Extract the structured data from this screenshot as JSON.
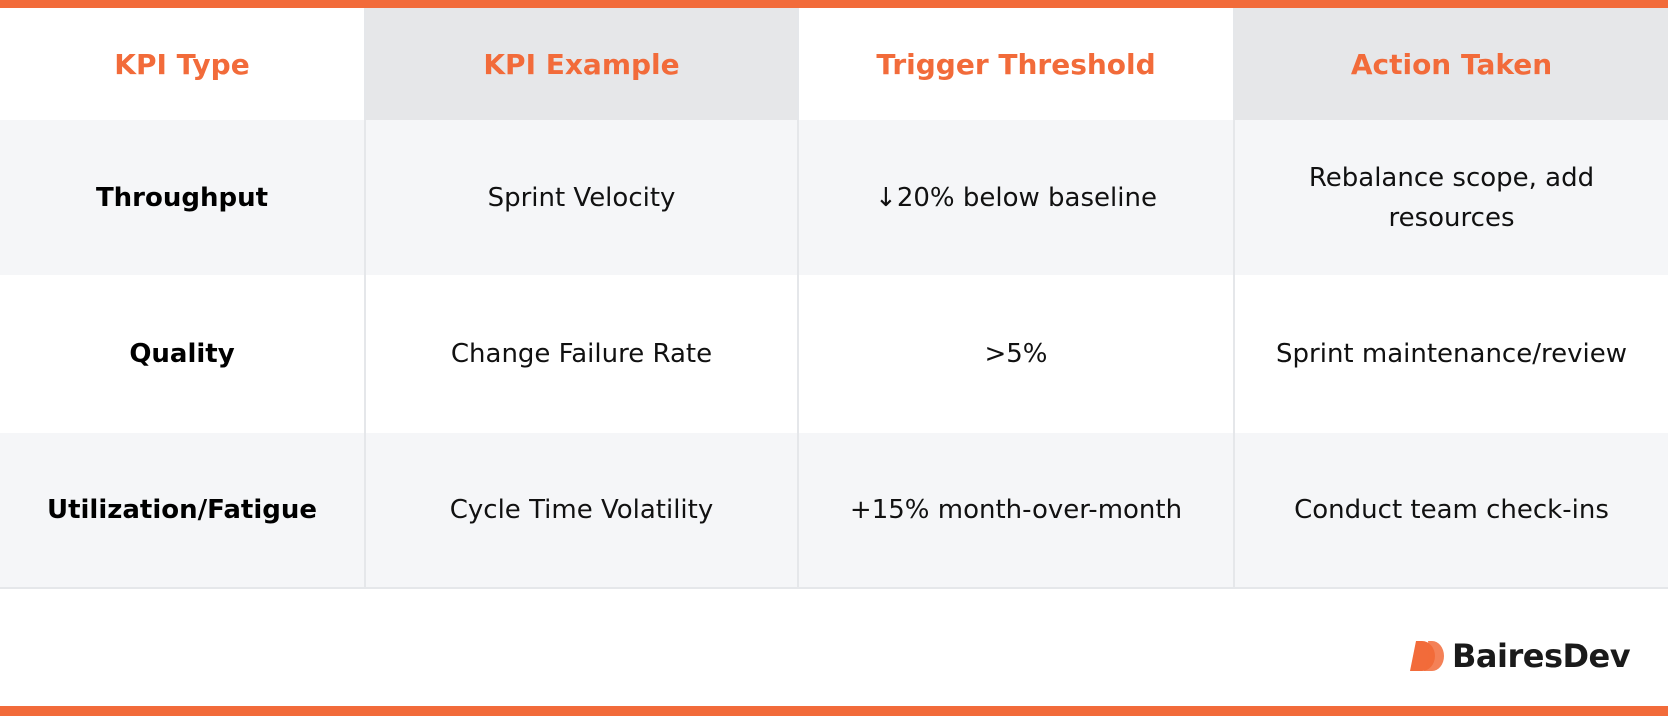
{
  "colors": {
    "accent": "#f26b3a",
    "header_shade": "#e6e7e9",
    "row_shade": "#f5f6f8",
    "text": "#111111"
  },
  "table": {
    "headers": [
      "KPI Type",
      "KPI Example",
      "Trigger Threshold",
      "Action Taken"
    ],
    "rows": [
      {
        "type": "Throughput",
        "example": "Sprint Velocity",
        "threshold": "↓20% below baseline",
        "action": "Rebalance scope, add resources"
      },
      {
        "type": "Quality",
        "example": "Change Failure Rate",
        "threshold": ">5%",
        "action": "Sprint maintenance/review"
      },
      {
        "type": "Utilization/Fatigue",
        "example": "Cycle Time Volatility",
        "threshold": "+15% month-over-month",
        "action": "Conduct team check-ins"
      }
    ]
  },
  "logo": {
    "icon": "bairesdev-logo-icon",
    "text": "BairesDev"
  }
}
